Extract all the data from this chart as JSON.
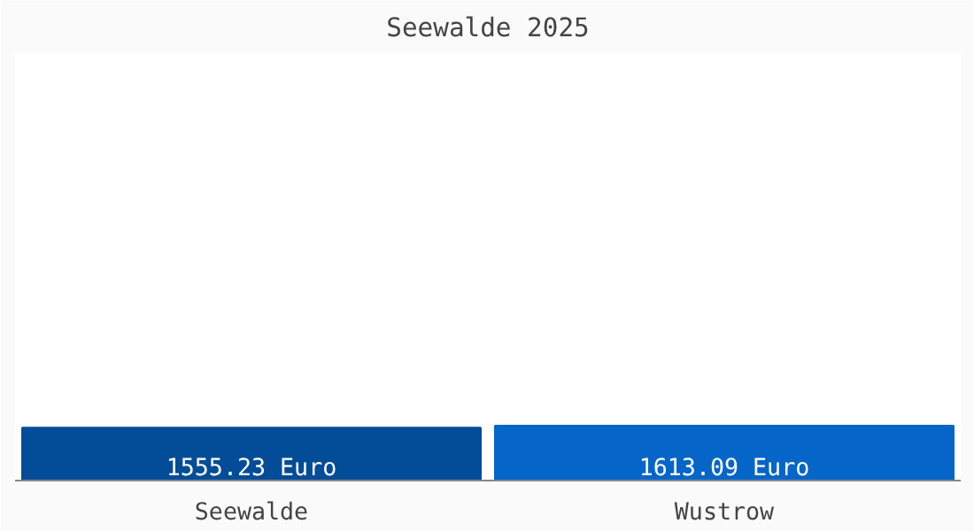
{
  "chart_data": {
    "type": "bar",
    "title": "Seewalde 2025",
    "categories": [
      "Seewalde",
      "Wustrow"
    ],
    "values": [
      1555.23,
      1613.09
    ],
    "colors": [
      "#034c97",
      "#0565c9"
    ],
    "value_labels": [
      "1555.23 Euro",
      "1613.09 Euro"
    ]
  }
}
